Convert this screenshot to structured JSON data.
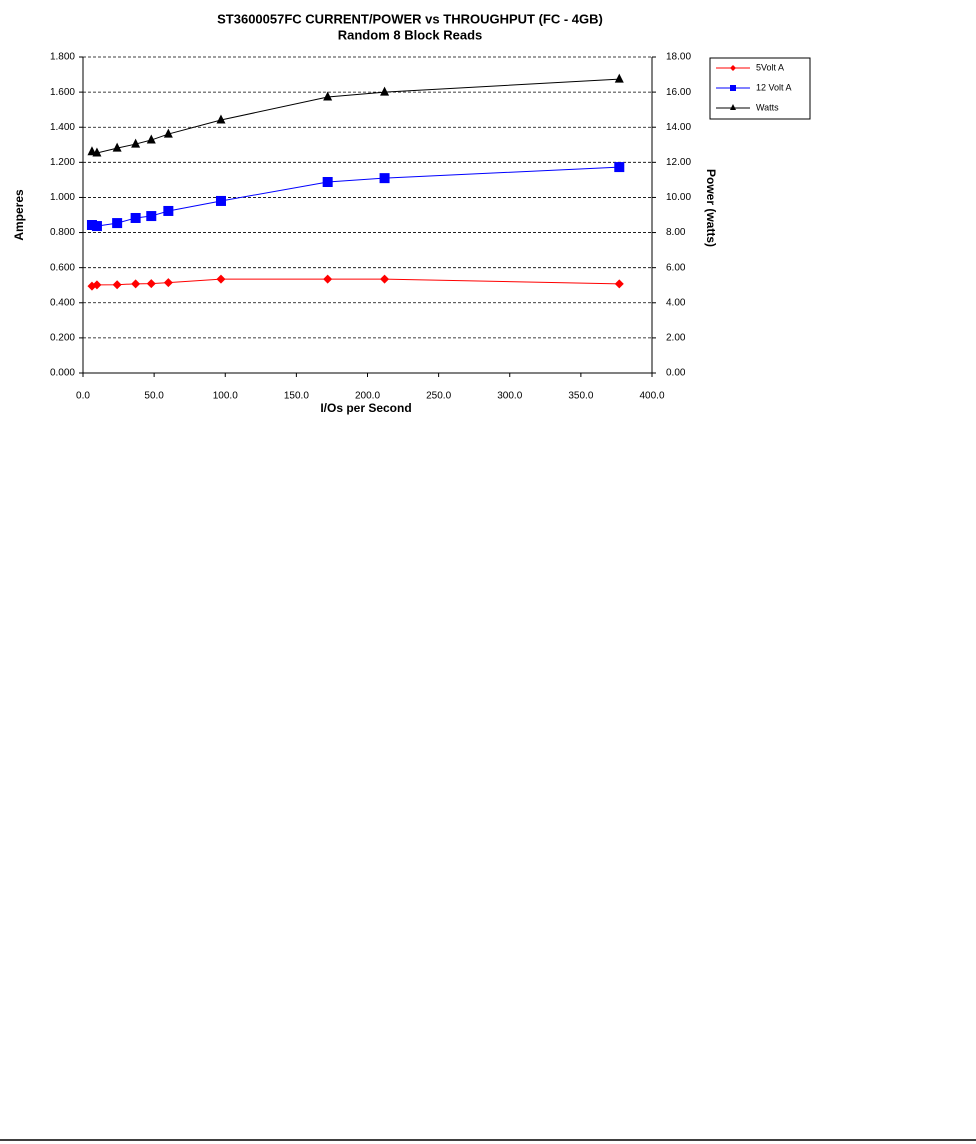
{
  "chart_data": {
    "type": "line",
    "title": "ST3600057FC CURRENT/POWER vs THROUGHPUT (FC - 4GB)",
    "subtitle": "Random 8 Block Reads",
    "x_label": "I/Os per Second",
    "y_label": "Amperes",
    "y2_label": "Power (watts)",
    "x": [
      6.3,
      9.8,
      24,
      37,
      48,
      60,
      97,
      172,
      212,
      377
    ],
    "series": [
      {
        "name": "5Volt A",
        "color": "#ff0000",
        "marker": "diamond",
        "values": [
          0.495,
          0.502,
          0.503,
          0.508,
          0.509,
          0.515,
          0.535,
          0.535,
          0.535,
          0.508
        ]
      },
      {
        "name": "12 Volt A",
        "color": "#0000ff",
        "marker": "square",
        "values": [
          0.843,
          0.837,
          0.854,
          0.883,
          0.894,
          0.923,
          0.98,
          1.088,
          1.11,
          1.173
        ]
      },
      {
        "name": "Watts",
        "color": "#000000",
        "marker": "triangle",
        "axis": "y2",
        "values": [
          12.6,
          12.53,
          12.81,
          13.04,
          13.27,
          13.61,
          14.41,
          15.72,
          16.0,
          16.74
        ]
      }
    ],
    "xlim": [
      0,
      400
    ],
    "xticks": [
      {
        "value": 0,
        "label": "0.0"
      },
      {
        "value": 50,
        "label": "50.0"
      },
      {
        "value": 100,
        "label": "100.0"
      },
      {
        "value": 150,
        "label": "150.0"
      },
      {
        "value": 200,
        "label": "200.0"
      },
      {
        "value": 250,
        "label": "250.0"
      },
      {
        "value": 300,
        "label": "300.0"
      },
      {
        "value": 350,
        "label": "350.0"
      },
      {
        "value": 400,
        "label": "400.0"
      }
    ],
    "ylim": [
      0,
      1.8
    ],
    "yticks": [
      {
        "value": 0,
        "label": "0.000"
      },
      {
        "value": 0.2,
        "label": "0.200"
      },
      {
        "value": 0.4,
        "label": "0.400"
      },
      {
        "value": 0.6,
        "label": "0.600"
      },
      {
        "value": 0.8,
        "label": "0.800"
      },
      {
        "value": 1.0,
        "label": "1.000"
      },
      {
        "value": 1.2,
        "label": "1.200"
      },
      {
        "value": 1.4,
        "label": "1.400"
      },
      {
        "value": 1.6,
        "label": "1.600"
      },
      {
        "value": 1.8,
        "label": "1.800"
      }
    ],
    "y2lim": [
      0,
      18
    ],
    "y2ticks": [
      {
        "value": 0,
        "label": "0.00"
      },
      {
        "value": 2,
        "label": "2.00"
      },
      {
        "value": 4,
        "label": "4.00"
      },
      {
        "value": 6,
        "label": "6.00"
      },
      {
        "value": 8,
        "label": "8.00"
      },
      {
        "value": 10,
        "label": "10.00"
      },
      {
        "value": 12,
        "label": "12.00"
      },
      {
        "value": 14,
        "label": "14.00"
      },
      {
        "value": 16,
        "label": "16.00"
      },
      {
        "value": 18,
        "label": "18.00"
      }
    ],
    "grid": true,
    "legend": "right"
  }
}
